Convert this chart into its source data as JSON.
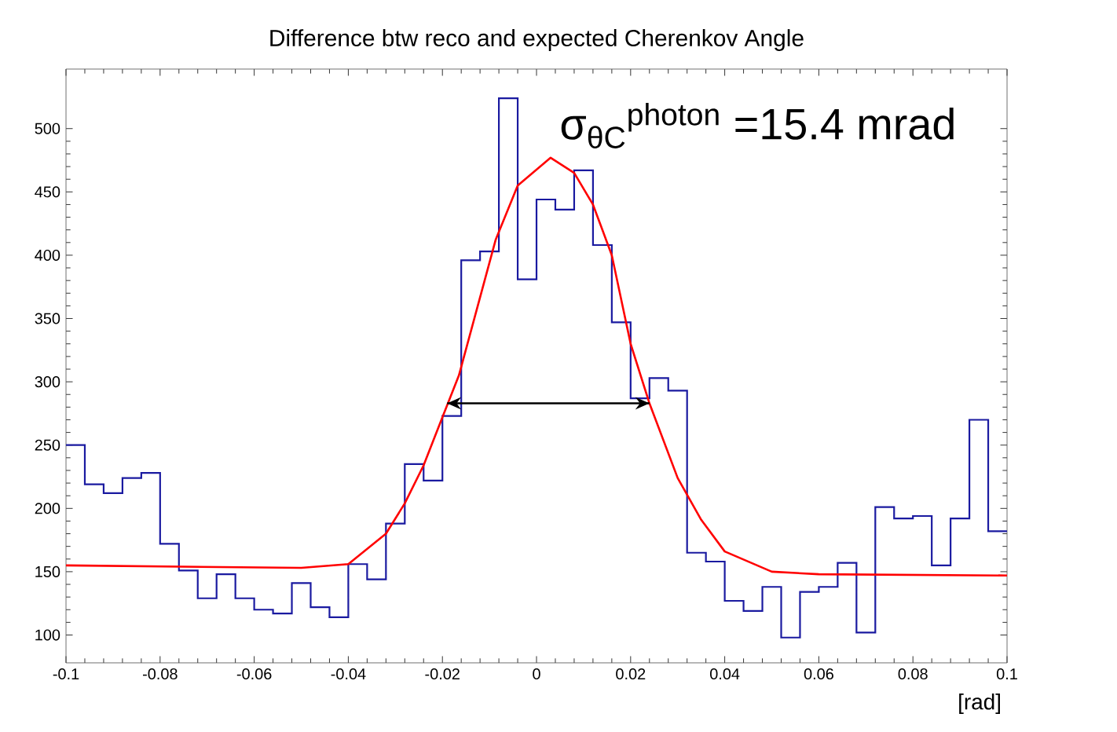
{
  "chart_data": {
    "type": "histogram",
    "title": "Difference btw reco and expected Cherenkov Angle",
    "xlabel": "[rad]",
    "color": "#1a1aa0",
    "bins": [
      -0.1,
      -0.096,
      -0.092,
      -0.088,
      -0.084,
      -0.08,
      -0.076,
      -0.072,
      -0.068,
      -0.064,
      -0.06,
      -0.056,
      -0.052,
      -0.048,
      -0.044,
      -0.04,
      -0.036,
      -0.032,
      -0.028,
      -0.024,
      -0.02,
      -0.016,
      -0.012,
      -0.008,
      -0.004,
      0,
      0.004,
      0.008,
      0.012,
      0.016,
      0.02,
      0.024,
      0.028,
      0.032,
      0.036,
      0.04,
      0.044,
      0.048,
      0.052,
      0.056,
      0.06,
      0.064,
      0.068,
      0.072,
      0.076,
      0.08,
      0.084,
      0.088,
      0.092,
      0.096,
      0.1
    ],
    "values": [
      250,
      219,
      212,
      224,
      228,
      172,
      151,
      129,
      148,
      129,
      120,
      117,
      141,
      122,
      114,
      156,
      144,
      188,
      235,
      222,
      273,
      396,
      403,
      524,
      381,
      444,
      436,
      467,
      408,
      347,
      287,
      303,
      293,
      165,
      158,
      127,
      119,
      138,
      98,
      134,
      138,
      157,
      102,
      201,
      192,
      194,
      155,
      192,
      270,
      182
    ],
    "series": [
      {
        "type": "line",
        "color": "#ff0000",
        "x": [
          -0.1,
          -0.05,
          -0.04,
          -0.032,
          -0.028,
          -0.024,
          -0.02,
          -0.0165,
          -0.0087,
          -0.004,
          0.003,
          0.008,
          0.012,
          0.016,
          0.02,
          0.024,
          0.03,
          0.035,
          0.04,
          0.05,
          0.06,
          0.1
        ],
        "values": [
          155,
          153,
          156,
          180,
          204,
          234,
          272,
          305,
          412,
          455,
          477,
          465,
          440,
          400,
          330,
          283,
          224,
          191,
          166,
          150,
          148,
          147
        ]
      },
      {
        "type": "line",
        "color": "#000000",
        "x": [
          -0.019,
          0.024
        ],
        "values": [
          283,
          283
        ]
      }
    ],
    "xlim": [
      -0.1,
      0.1
    ],
    "ylim": [
      78,
      547
    ],
    "xticks": [
      -0.1,
      -0.08,
      -0.06,
      -0.04,
      -0.02,
      0,
      0.02,
      0.04,
      0.06,
      0.08,
      0.1
    ],
    "yticks": [
      100,
      150,
      200,
      250,
      300,
      350,
      400,
      450,
      500
    ],
    "annotations": [
      "σ$_{θC}$$^{photon}$ =15.4 mrad"
    ],
    "grid": false
  }
}
